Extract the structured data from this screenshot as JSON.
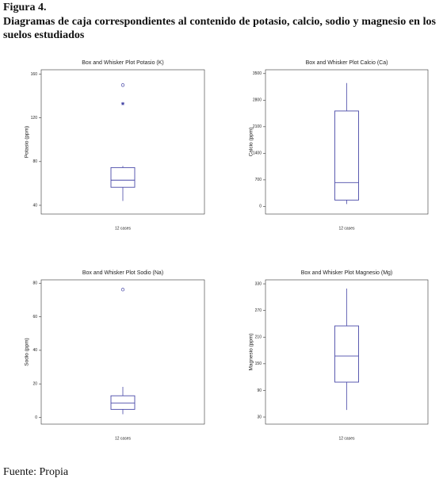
{
  "figure_label": "Figura 4.",
  "caption": "Diagramas de caja correspondientes al contenido de potasio, calcio, sodio y magnesio en los suelos estudiados",
  "source": "Fuente: Propia",
  "chart_data": [
    {
      "type": "box",
      "title": "Box and Whisker Plot Potasio (K)",
      "ylabel": "Potasio (ppm)",
      "xlabel": "12 cases",
      "color": "#4a4aa8",
      "ylim": [
        32,
        164
      ],
      "yticks": [
        40,
        80,
        120,
        160
      ],
      "box": {
        "min": 44,
        "q1": 56.5,
        "median": 63,
        "q3": 74.5,
        "max": 76
      },
      "outliers": [
        150,
        133
      ],
      "outlier_markers": [
        "circle",
        "star"
      ]
    },
    {
      "type": "box",
      "title": "Box and Whisker Plot Calcio (Ca)",
      "ylabel": "Calcio (ppm)",
      "xlabel": "12 cases",
      "color": "#4a4aa8",
      "ylim": [
        -200,
        3600
      ],
      "yticks": [
        0,
        700,
        1400,
        2100,
        2800,
        3500
      ],
      "box": {
        "min": 63,
        "q1": 168,
        "median": 629,
        "q3": 2515,
        "max": 3249
      }
    },
    {
      "type": "box",
      "title": "Box and Whisker Plot Sodio (Na)",
      "ylabel": "Sodio (ppm)",
      "xlabel": "12 cases",
      "color": "#4a4aa8",
      "ylim": [
        -4,
        82
      ],
      "yticks": [
        0,
        20,
        40,
        60,
        80
      ],
      "box": {
        "min": 1.9,
        "q1": 4.8,
        "median": 8.6,
        "q3": 12.9,
        "max": 18.2
      },
      "outliers": [
        76.2
      ],
      "outlier_markers": [
        "circle"
      ]
    },
    {
      "type": "box",
      "title": "Box and Whisker Plot Magnesio (Mg)",
      "ylabel": "Magnesio (ppm)",
      "xlabel": "12 cases",
      "color": "#4a4aa8",
      "ylim": [
        14,
        339
      ],
      "yticks": [
        30,
        90,
        150,
        210,
        270,
        330
      ],
      "box": {
        "min": 46,
        "q1": 108.6,
        "median": 167.5,
        "q3": 235.3,
        "max": 319.3
      }
    }
  ]
}
